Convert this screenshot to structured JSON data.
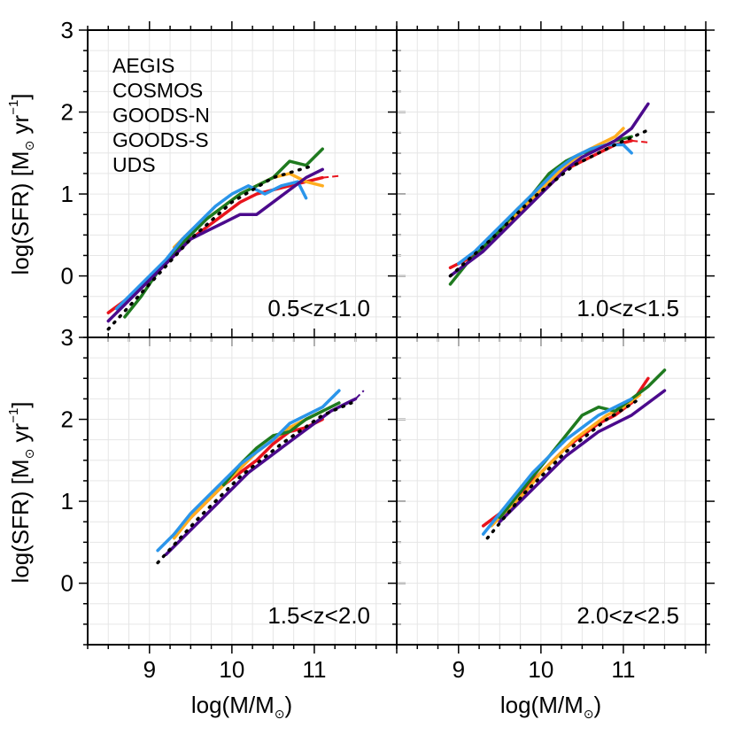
{
  "chart_data": {
    "type": "line",
    "xlabel": "log(M/M",
    "xlabel_sub": "⊙",
    "xlabel_close": ")",
    "ylabel": "log(SFR) [M",
    "ylabel_sub": "⊙",
    "ylabel_unit": " yr",
    "ylabel_sup": "−1",
    "ylabel_close": "]",
    "xlim": [
      8.25,
      12.0
    ],
    "ylim": [
      -0.75,
      3.0
    ],
    "xticks": [
      9,
      10,
      11
    ],
    "yticks": [
      0,
      1,
      2,
      3
    ],
    "grid": true,
    "colors": {
      "AEGIS": "#e8141c",
      "COSMOS": "#ffad1f",
      "GOODS-N": "#1f7a1f",
      "GOODS-S": "#2b95ea",
      "UDS": "#4b0a8c",
      "fit": "#000000"
    },
    "legend": {
      "placement": "top-left of upper-left panel",
      "entries": [
        "AEGIS",
        "COSMOS",
        "GOODS-N",
        "GOODS-S",
        "UDS"
      ]
    },
    "panels": [
      {
        "label": "0.5<z<1.0",
        "fit": {
          "x": [
            8.5,
            9.0,
            9.5,
            10.0,
            10.5,
            11.0
          ],
          "y": [
            -0.65,
            -0.1,
            0.45,
            0.9,
            1.2,
            1.35
          ]
        },
        "series": [
          {
            "name": "AEGIS",
            "x": [
              8.5,
              8.7,
              8.9,
              9.1,
              9.3,
              9.5,
              9.7,
              9.9,
              10.1,
              10.3,
              10.5,
              10.7,
              10.9,
              11.1
            ],
            "y": [
              -0.45,
              -0.3,
              -0.15,
              0.05,
              0.25,
              0.45,
              0.6,
              0.75,
              0.9,
              1.0,
              1.05,
              1.1,
              1.15,
              1.2
            ],
            "dashed_x": [
              11.1,
              11.3
            ],
            "dashed_y": [
              1.2,
              1.22
            ]
          },
          {
            "name": "COSMOS",
            "x": [
              9.3,
              9.5,
              9.7,
              9.9,
              10.1,
              10.3,
              10.5,
              10.7,
              10.9,
              11.1
            ],
            "y": [
              0.35,
              0.55,
              0.7,
              0.85,
              1.0,
              1.1,
              1.2,
              1.25,
              1.15,
              1.1
            ]
          },
          {
            "name": "GOODS-N",
            "x": [
              8.7,
              8.9,
              9.1,
              9.3,
              9.5,
              9.7,
              9.9,
              10.1,
              10.3,
              10.5,
              10.7,
              10.9,
              11.1
            ],
            "y": [
              -0.5,
              -0.25,
              0.05,
              0.3,
              0.5,
              0.7,
              0.85,
              1.0,
              1.1,
              1.2,
              1.4,
              1.35,
              1.55
            ]
          },
          {
            "name": "GOODS-S",
            "x": [
              8.6,
              8.8,
              9.0,
              9.2,
              9.4,
              9.6,
              9.8,
              10.0,
              10.2,
              10.4,
              10.6,
              10.8,
              10.9
            ],
            "y": [
              -0.4,
              -0.2,
              0.0,
              0.2,
              0.45,
              0.65,
              0.85,
              1.0,
              1.1,
              1.0,
              1.1,
              1.15,
              0.95
            ]
          },
          {
            "name": "UDS",
            "x": [
              8.5,
              8.7,
              8.9,
              9.1,
              9.3,
              9.5,
              9.7,
              9.9,
              10.1,
              10.3,
              10.5,
              10.7,
              10.9,
              11.1
            ],
            "y": [
              -0.55,
              -0.35,
              -0.15,
              0.05,
              0.25,
              0.45,
              0.55,
              0.65,
              0.75,
              0.75,
              0.9,
              1.05,
              1.2,
              1.3
            ]
          }
        ]
      },
      {
        "label": "1.0<z<1.5",
        "fit": {
          "x": [
            8.9,
            9.4,
            9.9,
            10.4,
            10.9,
            11.3
          ],
          "y": [
            0.0,
            0.45,
            0.95,
            1.35,
            1.6,
            1.78
          ]
        },
        "series": [
          {
            "name": "AEGIS",
            "x": [
              8.9,
              9.1,
              9.3,
              9.5,
              9.7,
              9.9,
              10.1,
              10.3,
              10.5,
              10.7,
              10.9,
              11.1
            ],
            "y": [
              0.1,
              0.2,
              0.35,
              0.55,
              0.75,
              0.95,
              1.1,
              1.3,
              1.4,
              1.5,
              1.6,
              1.65
            ],
            "dashed_x": [
              11.1,
              11.3
            ],
            "dashed_y": [
              1.65,
              1.63
            ]
          },
          {
            "name": "COSMOS",
            "x": [
              9.3,
              9.5,
              9.7,
              9.9,
              10.1,
              10.3,
              10.5,
              10.7,
              10.9,
              11.0
            ],
            "y": [
              0.35,
              0.55,
              0.75,
              0.95,
              1.15,
              1.35,
              1.5,
              1.6,
              1.7,
              1.8
            ]
          },
          {
            "name": "GOODS-N",
            "x": [
              8.9,
              9.1,
              9.3,
              9.5,
              9.7,
              9.9,
              10.1,
              10.3,
              10.5,
              10.7,
              10.9,
              11.1
            ],
            "y": [
              -0.1,
              0.15,
              0.35,
              0.55,
              0.8,
              1.0,
              1.25,
              1.4,
              1.5,
              1.55,
              1.65,
              1.7
            ]
          },
          {
            "name": "GOODS-S",
            "x": [
              9.0,
              9.2,
              9.4,
              9.6,
              9.8,
              10.0,
              10.2,
              10.4,
              10.6,
              10.8,
              11.0,
              11.1
            ],
            "y": [
              0.15,
              0.3,
              0.5,
              0.7,
              0.9,
              1.1,
              1.3,
              1.45,
              1.55,
              1.6,
              1.6,
              1.5
            ]
          },
          {
            "name": "UDS",
            "x": [
              8.9,
              9.1,
              9.3,
              9.5,
              9.7,
              9.9,
              10.1,
              10.3,
              10.5,
              10.7,
              10.9,
              11.1,
              11.3
            ],
            "y": [
              0.0,
              0.15,
              0.3,
              0.5,
              0.7,
              0.9,
              1.1,
              1.3,
              1.45,
              1.55,
              1.65,
              1.8,
              2.1
            ]
          }
        ]
      },
      {
        "label": "1.5<z<2.0",
        "fit": {
          "x": [
            9.1,
            9.6,
            10.1,
            10.6,
            11.1,
            11.45
          ],
          "y": [
            0.25,
            0.8,
            1.3,
            1.7,
            2.05,
            2.2
          ]
        },
        "series": [
          {
            "name": "AEGIS",
            "x": [
              9.3,
              9.5,
              9.7,
              9.9,
              10.1,
              10.3,
              10.5,
              10.7,
              10.9,
              11.1
            ],
            "y": [
              0.6,
              0.8,
              1.0,
              1.2,
              1.35,
              1.5,
              1.7,
              1.85,
              1.9,
              2.0
            ]
          },
          {
            "name": "COSMOS",
            "x": [
              9.3,
              9.5,
              9.7,
              9.9,
              10.1,
              10.3,
              10.5,
              10.7,
              10.9,
              11.1
            ],
            "y": [
              0.55,
              0.8,
              1.0,
              1.2,
              1.4,
              1.6,
              1.75,
              1.9,
              2.0,
              2.1
            ]
          },
          {
            "name": "GOODS-N",
            "x": [
              9.9,
              10.1,
              10.3,
              10.5,
              10.7,
              10.9,
              11.1,
              11.3
            ],
            "y": [
              1.2,
              1.45,
              1.65,
              1.8,
              1.85,
              2.0,
              2.1,
              2.2
            ]
          },
          {
            "name": "GOODS-S",
            "x": [
              9.1,
              9.3,
              9.5,
              9.7,
              9.9,
              10.1,
              10.3,
              10.5,
              10.7,
              10.9,
              11.1,
              11.3
            ],
            "y": [
              0.4,
              0.6,
              0.85,
              1.05,
              1.25,
              1.45,
              1.6,
              1.75,
              1.95,
              2.05,
              2.15,
              2.35
            ]
          },
          {
            "name": "UDS",
            "x": [
              9.2,
              9.4,
              9.6,
              9.8,
              10.0,
              10.2,
              10.4,
              10.6,
              10.8,
              11.0,
              11.2,
              11.4,
              11.5
            ],
            "y": [
              0.35,
              0.55,
              0.75,
              0.95,
              1.15,
              1.35,
              1.5,
              1.65,
              1.8,
              1.95,
              2.1,
              2.2,
              2.25
            ],
            "dashed_x": [
              11.5,
              11.6
            ],
            "dashed_y": [
              2.25,
              2.35
            ]
          }
        ]
      },
      {
        "label": "2.0<z<2.5",
        "fit": {
          "x": [
            9.35,
            9.8,
            10.3,
            10.8,
            11.2
          ],
          "y": [
            0.55,
            1.1,
            1.6,
            2.0,
            2.25
          ]
        },
        "series": [
          {
            "name": "AEGIS",
            "x": [
              9.3,
              9.5,
              9.7,
              9.9,
              10.1,
              10.3,
              10.5,
              10.7,
              10.9,
              11.1,
              11.3
            ],
            "y": [
              0.7,
              0.85,
              1.05,
              1.25,
              1.45,
              1.65,
              1.8,
              1.95,
              2.05,
              2.2,
              2.5
            ]
          },
          {
            "name": "COSMOS",
            "x": [
              9.4,
              9.6,
              9.8,
              10.0,
              10.2,
              10.4,
              10.6,
              10.8,
              11.0,
              11.2
            ],
            "y": [
              0.7,
              0.9,
              1.1,
              1.35,
              1.55,
              1.75,
              1.9,
              2.05,
              2.15,
              2.3
            ]
          },
          {
            "name": "GOODS-N",
            "x": [
              9.5,
              9.7,
              9.9,
              10.1,
              10.3,
              10.5,
              10.7,
              10.9,
              11.1,
              11.3,
              11.5
            ],
            "y": [
              0.8,
              1.05,
              1.3,
              1.55,
              1.8,
              2.05,
              2.15,
              2.1,
              2.25,
              2.4,
              2.6
            ]
          },
          {
            "name": "GOODS-S",
            "x": [
              9.3,
              9.5,
              9.7,
              9.9,
              10.1,
              10.3,
              10.5,
              10.7,
              10.9,
              11.1
            ],
            "y": [
              0.6,
              0.85,
              1.1,
              1.35,
              1.55,
              1.75,
              1.9,
              2.05,
              2.15,
              2.25
            ]
          },
          {
            "name": "UDS",
            "x": [
              9.5,
              9.7,
              9.9,
              10.1,
              10.3,
              10.5,
              10.7,
              10.9,
              11.1,
              11.3,
              11.5
            ],
            "y": [
              0.75,
              0.95,
              1.15,
              1.35,
              1.55,
              1.7,
              1.85,
              1.95,
              2.05,
              2.2,
              2.35
            ]
          }
        ]
      }
    ]
  }
}
